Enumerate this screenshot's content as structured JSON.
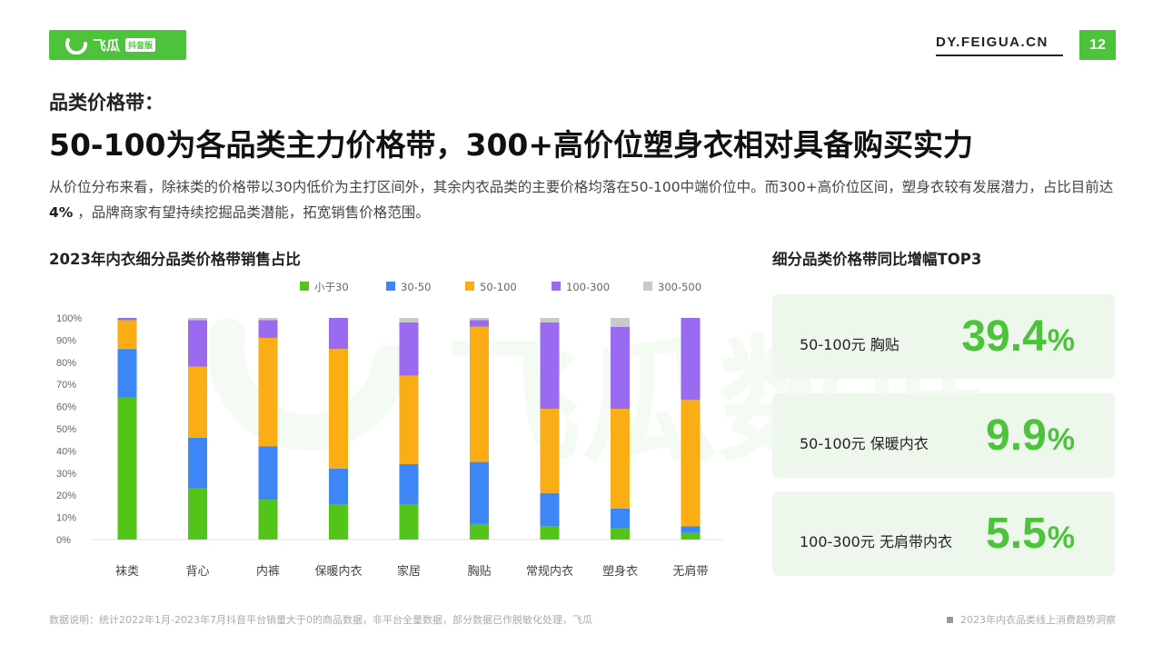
{
  "header": {
    "logo_text": "飞瓜",
    "logo_tag": "抖音版",
    "site": "DY.FEIGUA.CN",
    "page_number": "12",
    "brand_color": "#4cc33a"
  },
  "kicker": "品类价格带：",
  "headline": "50-100为各品类主力价格带，300+高价位塑身衣相对具备购买实力",
  "description": {
    "before": "从价位分布来看，除袜类的价格带以30内低价为主打区间外，其余内衣品类的主要价格均落在50-100中端价位中。而300+高价位区间，塑身衣较有发展潜力，占比目前达 ",
    "highlight": "4%",
    "after": " ，品牌商家有望持续挖掘品类潜能，拓宽销售价格范围。"
  },
  "chart_title": "2023年内衣细分品类价格带销售占比",
  "chart_data": {
    "type": "bar",
    "stacked": true,
    "categories": [
      "袜类",
      "背心",
      "内裤",
      "保暖内衣",
      "家居",
      "胸贴",
      "常规内衣",
      "塑身衣",
      "无肩带"
    ],
    "series": [
      {
        "name": "小于30",
        "color": "#52c41a",
        "values": [
          64,
          23,
          18,
          16,
          16,
          7,
          6,
          5,
          3
        ]
      },
      {
        "name": "30-50",
        "color": "#3d86f5",
        "values": [
          22,
          23,
          24,
          16,
          18,
          28,
          15,
          9,
          3
        ]
      },
      {
        "name": "50-100",
        "color": "#faad14",
        "values": [
          13,
          32,
          49,
          54,
          40,
          61,
          38,
          45,
          57
        ]
      },
      {
        "name": "100-300",
        "color": "#9a6af0",
        "values": [
          1,
          21,
          8,
          14,
          24,
          3,
          39,
          37,
          37
        ]
      },
      {
        "name": "300-500",
        "color": "#c9c9c9",
        "values": [
          0,
          1,
          1,
          0,
          2,
          1,
          2,
          4,
          0
        ]
      }
    ],
    "y_ticks": [
      "0%",
      "10%",
      "20%",
      "30%",
      "40%",
      "50%",
      "60%",
      "70%",
      "80%",
      "90%",
      "100%"
    ],
    "ylim": [
      0,
      100
    ],
    "grid": false,
    "legend": "top"
  },
  "right_title": "细分品类价格带同比增幅TOP3",
  "top3": [
    {
      "label": "50-100元 胸贴",
      "value": "39.4",
      "unit": "%"
    },
    {
      "label": "50-100元 保暖内衣",
      "value": "9.9",
      "unit": "%"
    },
    {
      "label": "100-300元 无肩带内衣",
      "value": "5.5",
      "unit": "%"
    }
  ],
  "watermark": "飞瓜数据",
  "footnote": "数据说明：统计2022年1月-2023年7月抖音平台销量大于0的商品数据，非平台全量数据，部分数据已作脱敏化处理，飞瓜",
  "footer_right": "2023年内衣品类线上消费趋势洞察"
}
